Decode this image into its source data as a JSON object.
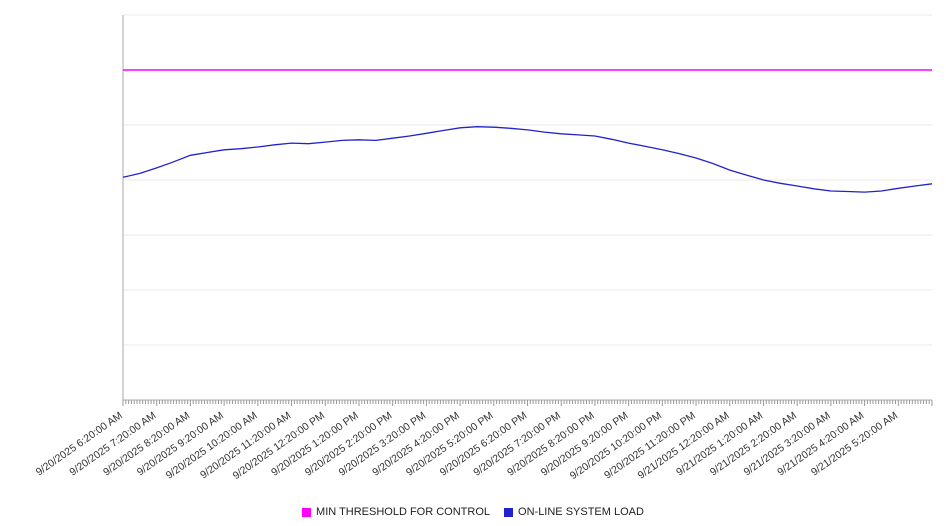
{
  "chart_data": {
    "type": "line",
    "title": "",
    "xlabel": "",
    "ylabel": "",
    "y_axis_labels_visible": false,
    "y_units": "gridline-units (no numeric y-axis labels are rendered in the image)",
    "ylim": [
      0,
      7
    ],
    "y_gridlines": [
      0,
      1,
      2,
      3,
      4,
      5,
      6,
      7
    ],
    "grid": "horizontal-only",
    "legend_position": "bottom-center",
    "x_tick_labels": [
      "9/20/2025 6:20:00 AM",
      "9/20/2025 7:20:00 AM",
      "9/20/2025 8:20:00 AM",
      "9/20/2025 9:20:00 AM",
      "9/20/2025 10:20:00 AM",
      "9/20/2025 11:20:00 AM",
      "9/20/2025 12:20:00 PM",
      "9/20/2025 1:20:00 PM",
      "9/20/2025 2:20:00 PM",
      "9/20/2025 3:20:00 PM",
      "9/20/2025 4:20:00 PM",
      "9/20/2025 5:20:00 PM",
      "9/20/2025 6:20:00 PM",
      "9/20/2025 7:20:00 PM",
      "9/20/2025 8:20:00 PM",
      "9/20/2025 9:20:00 PM",
      "9/20/2025 10:20:00 PM",
      "9/20/2025 11:20:00 PM",
      "9/21/2025 12:20:00 AM",
      "9/21/2025 1:20:00 AM",
      "9/21/2025 2:20:00 AM",
      "9/21/2025 3:20:00 AM",
      "9/21/2025 4:20:00 AM",
      "9/21/2025 5:20:00 AM"
    ],
    "series": [
      {
        "name": "MIN THRESHOLD FOR CONTROL",
        "color": "#ff00ff",
        "type": "constant-line",
        "value": 6.0
      },
      {
        "name": "ON-LINE SYSTEM LOAD",
        "color": "#2222cc",
        "type": "line",
        "interval_minutes": 30,
        "start": "9/20/2025 6:20:00 AM",
        "values": [
          4.05,
          4.12,
          4.22,
          4.33,
          4.45,
          4.5,
          4.55,
          4.57,
          4.6,
          4.64,
          4.67,
          4.66,
          4.69,
          4.72,
          4.73,
          4.72,
          4.76,
          4.8,
          4.85,
          4.9,
          4.95,
          4.97,
          4.96,
          4.94,
          4.91,
          4.87,
          4.84,
          4.82,
          4.8,
          4.74,
          4.67,
          4.61,
          4.55,
          4.48,
          4.4,
          4.3,
          4.18,
          4.09,
          4.0,
          3.94,
          3.89,
          3.84,
          3.8,
          3.79,
          3.78,
          3.8,
          3.85,
          3.89,
          3.93
        ]
      }
    ]
  },
  "colors": {
    "axis": "#aaaaaa",
    "gridline": "#e8e8e8",
    "tick": "#999999",
    "label_text": "#333333",
    "background": "#ffffff"
  }
}
